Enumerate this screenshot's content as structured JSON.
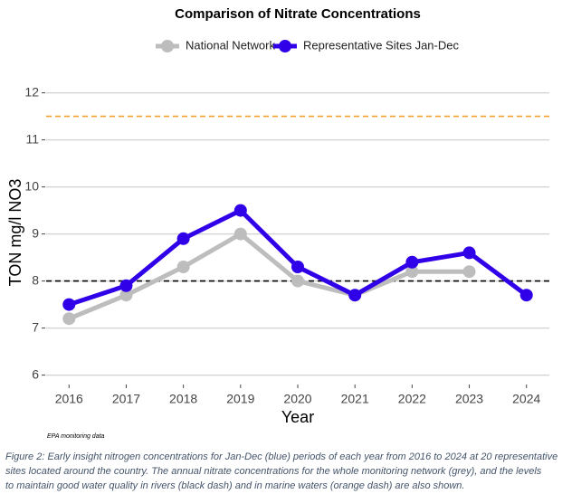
{
  "chart_data": {
    "type": "line",
    "title": "Comparison of Nitrate Concentrations",
    "x_label": "Year",
    "y_label": "TON mg/l NO3",
    "x": [
      2016,
      2017,
      2018,
      2019,
      2020,
      2021,
      2022,
      2023,
      2024
    ],
    "series": [
      {
        "name": "National Network",
        "color": "#bdbdbd",
        "values": [
          7.2,
          7.7,
          8.3,
          9.0,
          8.0,
          7.7,
          8.2,
          8.2,
          null
        ]
      },
      {
        "name": "Representative Sites Jan-Dec",
        "color": "#3000e8",
        "values": [
          7.5,
          7.9,
          8.9,
          9.5,
          8.3,
          7.7,
          8.4,
          8.6,
          7.7
        ]
      }
    ],
    "reference_lines": [
      {
        "value": 8,
        "color": "#000000"
      },
      {
        "value": 11.5,
        "color": "#f5a030"
      }
    ],
    "xlim": [
      2015.6,
      2024.4
    ],
    "xticks": [
      2016,
      2017,
      2018,
      2019,
      2020,
      2021,
      2022,
      2023,
      2024
    ],
    "ylim": [
      5.8,
      12.3
    ],
    "yticks": [
      6,
      7,
      8,
      9,
      10,
      11,
      12
    ],
    "grid": true,
    "legend": "top",
    "source": "EPA monitoring data"
  },
  "caption": [
    "Figure 2: Early insight nitrogen concentrations for Jan-Dec (blue) periods of each year from 2016 to 2024 at 20 representative",
    "sites located around the country. The annual nitrate concentrations for the whole monitoring network (grey), and the levels",
    "to maintain good water quality in rivers (black dash) and in marine waters (orange dash) are also shown."
  ]
}
